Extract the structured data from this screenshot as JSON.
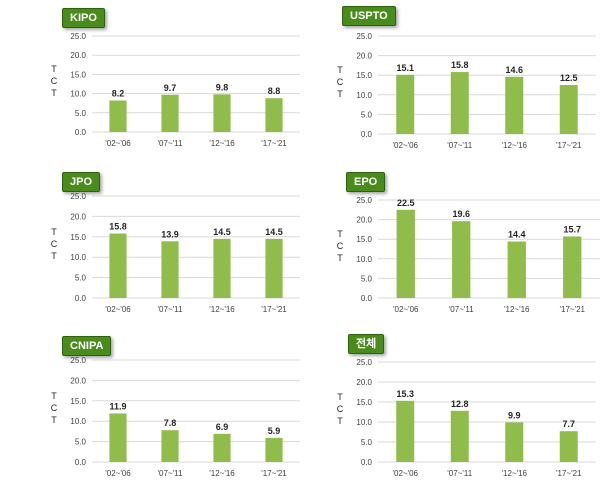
{
  "colors": {
    "bar": "#8fbc4a",
    "badge": "#4a8c1c",
    "grid": "#d9d9d9"
  },
  "chart_data": [
    {
      "type": "bar",
      "title": "KIPO",
      "ylabel": "TCT",
      "ylim": [
        0,
        25
      ],
      "yticks": [
        "0.0",
        "5.0",
        "10.0",
        "15.0",
        "20.0",
        "25.0"
      ],
      "categories": [
        "'02~'06",
        "'07~'11",
        "'12~'16",
        "'17~'21"
      ],
      "values": [
        8.2,
        9.7,
        9.8,
        8.8
      ],
      "labels": [
        "8.2",
        "9.7",
        "9.8",
        "8.8"
      ]
    },
    {
      "type": "bar",
      "title": "USPTO",
      "ylabel": "TCT",
      "ylim": [
        0,
        25
      ],
      "yticks": [
        "0.0",
        "5.0",
        "10.0",
        "15.0",
        "20.0",
        "25.0"
      ],
      "categories": [
        "'02~'06",
        "'07~'11",
        "'12~'16",
        "'17~'21"
      ],
      "values": [
        15.1,
        15.8,
        14.6,
        12.5
      ],
      "labels": [
        "15.1",
        "15.8",
        "14.6",
        "12.5"
      ]
    },
    {
      "type": "bar",
      "title": "JPO",
      "ylabel": "TCT",
      "ylim": [
        0,
        25
      ],
      "yticks": [
        "0.0",
        "5.0",
        "10.0",
        "15.0",
        "20.0",
        "25.0"
      ],
      "categories": [
        "'02~'06",
        "'07~'11",
        "'12~'16",
        "'17~'21"
      ],
      "values": [
        15.8,
        13.9,
        14.5,
        14.5
      ],
      "labels": [
        "15.8",
        "13.9",
        "14.5",
        "14.5"
      ]
    },
    {
      "type": "bar",
      "title": "EPO",
      "ylabel": "TCT",
      "ylim": [
        0,
        25
      ],
      "yticks": [
        "0.0",
        "5.0",
        "10.0",
        "15.0",
        "20.0",
        "25.0"
      ],
      "categories": [
        "'02~'06",
        "'07~'11",
        "'12~'16",
        "'17~'21"
      ],
      "values": [
        22.5,
        19.6,
        14.4,
        15.7
      ],
      "labels": [
        "22.5",
        "19.6",
        "14.4",
        "15.7"
      ]
    },
    {
      "type": "bar",
      "title": "CNIPA",
      "ylabel": "TCT",
      "ylim": [
        0,
        25
      ],
      "yticks": [
        "0.0",
        "5.0",
        "10.0",
        "15.0",
        "20.0",
        "25.0"
      ],
      "categories": [
        "'02~'06",
        "'07~'11",
        "'12~'16",
        "'17~'21"
      ],
      "values": [
        11.9,
        7.8,
        6.9,
        5.9
      ],
      "labels": [
        "11.9",
        "7.8",
        "6.9",
        "5.9"
      ]
    },
    {
      "type": "bar",
      "title": "전체",
      "ylabel": "TCT",
      "ylim": [
        0,
        25
      ],
      "yticks": [
        "0.0",
        "5.0",
        "10.0",
        "15.0",
        "20.0",
        "25.0"
      ],
      "categories": [
        "'02~'06",
        "'07~'11",
        "'12~'16",
        "'17~'21"
      ],
      "values": [
        15.3,
        12.8,
        9.9,
        7.7
      ],
      "labels": [
        "15.3",
        "12.8",
        "9.9",
        "7.7"
      ]
    }
  ]
}
